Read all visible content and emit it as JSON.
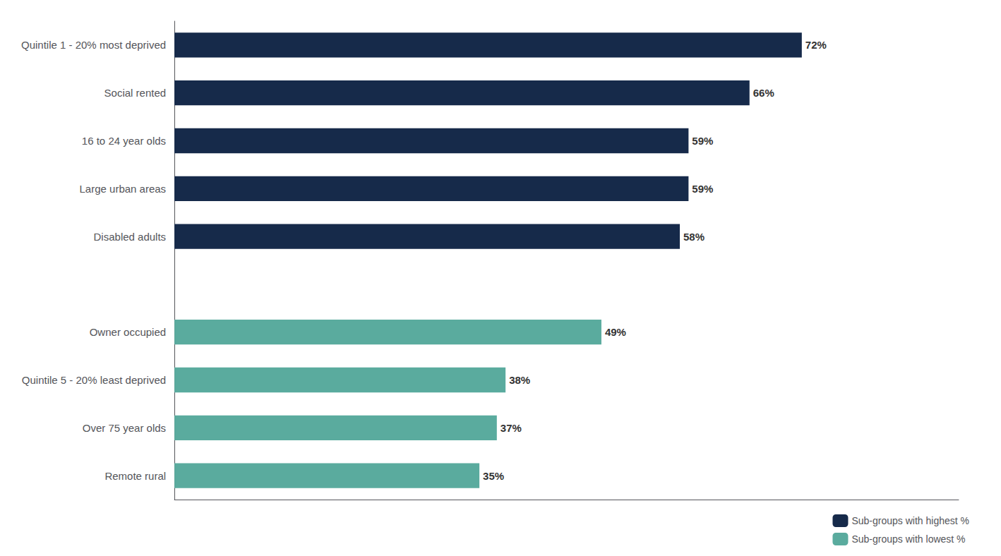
{
  "chart_data": {
    "type": "bar",
    "orientation": "horizontal",
    "categories": [
      "Quintile 1 - 20% most deprived",
      "Social rented",
      "16 to 24 year olds",
      "Large urban areas",
      "Disabled adults",
      null,
      "Owner occupied",
      "Quintile 5 - 20% least deprived",
      "Over 75 year olds",
      "Remote rural"
    ],
    "series": [
      {
        "name": "Sub-groups with highest %",
        "color": "#162a4a",
        "values": [
          72,
          66,
          59,
          59,
          58,
          null,
          null,
          null,
          null,
          null
        ],
        "value_labels": [
          "72%",
          "66%",
          "59%",
          "59%",
          "58%",
          null,
          null,
          null,
          null,
          null
        ]
      },
      {
        "name": "Sub-groups with lowest %",
        "color": "#5aab9e",
        "values": [
          null,
          null,
          null,
          null,
          null,
          null,
          49,
          38,
          37,
          35
        ],
        "value_labels": [
          null,
          null,
          null,
          null,
          null,
          null,
          "49%",
          "38%",
          "37%",
          "35%"
        ]
      }
    ],
    "xlim": [
      0,
      90
    ],
    "data_labels": true,
    "tick_labels": "y",
    "grid": false,
    "legend": "lower right"
  }
}
